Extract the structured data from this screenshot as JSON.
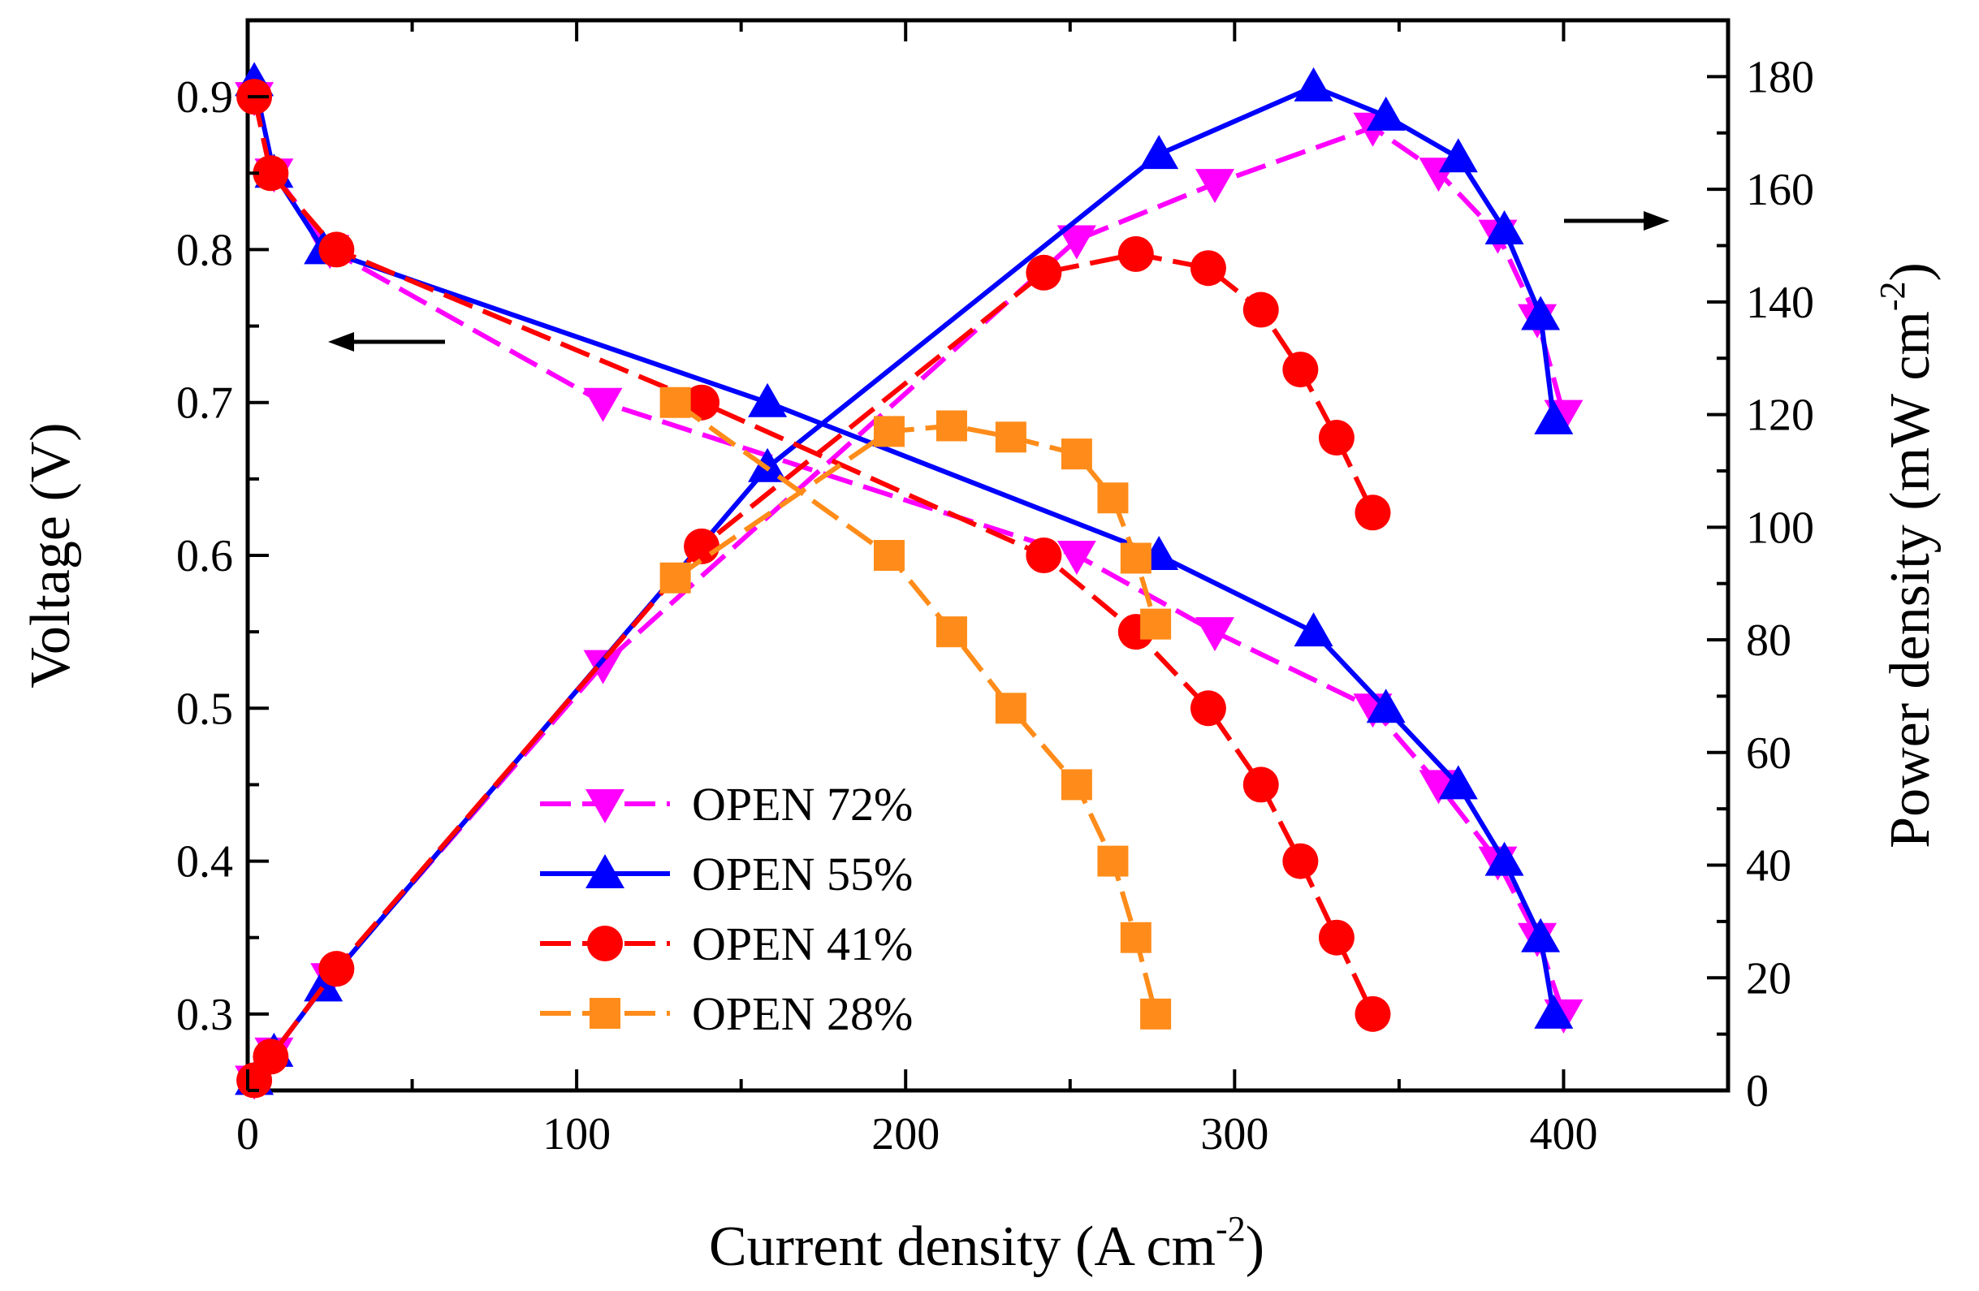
{
  "chart_data": {
    "type": "line",
    "title": "",
    "xlabel": "Current density (A cm",
    "xlabel_sup": "-2",
    "xlabel_end": ")",
    "ylabel_left": "Voltage (V)",
    "ylabel_right": "Power density (mW cm",
    "ylabel_right_sup": "-2",
    "ylabel_right_end": ")",
    "xlim": [
      0,
      450
    ],
    "ylim_left": [
      0.25,
      0.95
    ],
    "ylim_right": [
      0,
      190
    ],
    "x_ticks": [
      0,
      100,
      200,
      300,
      400
    ],
    "x_tick_labels": [
      "0",
      "100",
      "200",
      "300",
      "400"
    ],
    "y_left_ticks": [
      0.3,
      0.4,
      0.5,
      0.6,
      0.7,
      0.8,
      0.9
    ],
    "y_left_tick_labels": [
      "0.3",
      "0.4",
      "0.5",
      "0.6",
      "0.7",
      "0.8",
      "0.9"
    ],
    "y_right_ticks": [
      0,
      20,
      40,
      60,
      80,
      100,
      120,
      140,
      160,
      180
    ],
    "y_right_tick_labels": [
      "0",
      "20",
      "40",
      "60",
      "80",
      "100",
      "120",
      "140",
      "160",
      "180"
    ],
    "legend_position": "center",
    "annotations": [
      {
        "type": "arrow",
        "direction": "left",
        "meaning": "voltage curves read on left axis"
      },
      {
        "type": "arrow",
        "direction": "right",
        "meaning": "power curves read on right axis"
      }
    ],
    "series": [
      {
        "name": "OPEN 72%",
        "color": "#ff00ff",
        "marker": "triangle-down",
        "line": "dashed",
        "voltage": {
          "x": [
            2,
            8,
            25,
            108,
            252,
            294,
            342,
            362,
            380,
            392,
            400
          ],
          "y": [
            0.9,
            0.85,
            0.8,
            0.7,
            0.6,
            0.55,
            0.5,
            0.45,
            0.4,
            0.35,
            0.3
          ]
        },
        "power": {
          "x": [
            2,
            8,
            25,
            108,
            252,
            294,
            342,
            362,
            380,
            392,
            400
          ],
          "y": [
            1.8,
            6.8,
            20,
            75.6,
            151,
            161,
            171,
            163,
            152,
            137,
            120
          ]
        }
      },
      {
        "name": "OPEN 55%",
        "color": "#0000ff",
        "marker": "triangle-up",
        "line": "solid",
        "voltage": {
          "x": [
            2,
            8,
            23,
            158,
            277,
            324,
            346,
            368,
            382,
            393,
            397
          ],
          "y": [
            0.91,
            0.85,
            0.8,
            0.7,
            0.6,
            0.55,
            0.5,
            0.45,
            0.4,
            0.35,
            0.3
          ]
        },
        "power": {
          "x": [
            2,
            8,
            23,
            158,
            277,
            324,
            346,
            368,
            382,
            393,
            397
          ],
          "y": [
            1.8,
            6.8,
            18.4,
            110.6,
            166.2,
            178.2,
            173,
            165.6,
            152.8,
            137.6,
            119.1
          ]
        }
      },
      {
        "name": "OPEN 41%",
        "color": "#ff0000",
        "marker": "circle",
        "line": "dashed",
        "voltage": {
          "x": [
            2,
            7,
            27,
            138,
            242,
            270,
            292,
            308,
            320,
            331,
            342
          ],
          "y": [
            0.9,
            0.85,
            0.8,
            0.7,
            0.6,
            0.55,
            0.5,
            0.45,
            0.4,
            0.35,
            0.3
          ]
        },
        "power": {
          "x": [
            2,
            7,
            27,
            138,
            242,
            270,
            292,
            308,
            320,
            331,
            342
          ],
          "y": [
            1.8,
            6,
            21.6,
            96.6,
            145.2,
            148.5,
            146,
            138.6,
            128,
            115.9,
            102.6
          ]
        }
      },
      {
        "name": "OPEN 28%",
        "color": "#ff8c1a",
        "marker": "square",
        "line": "dashed",
        "voltage": {
          "x": [
            130,
            195,
            214,
            232,
            252,
            263,
            270,
            276
          ],
          "y": [
            0.7,
            0.6,
            0.55,
            0.5,
            0.45,
            0.4,
            0.35,
            0.3
          ]
        },
        "power": {
          "x": [
            130,
            195,
            214,
            232,
            252,
            263,
            270,
            276
          ],
          "y": [
            91,
            117,
            118,
            116,
            113,
            105.2,
            94.5,
            82.8
          ]
        }
      }
    ]
  }
}
